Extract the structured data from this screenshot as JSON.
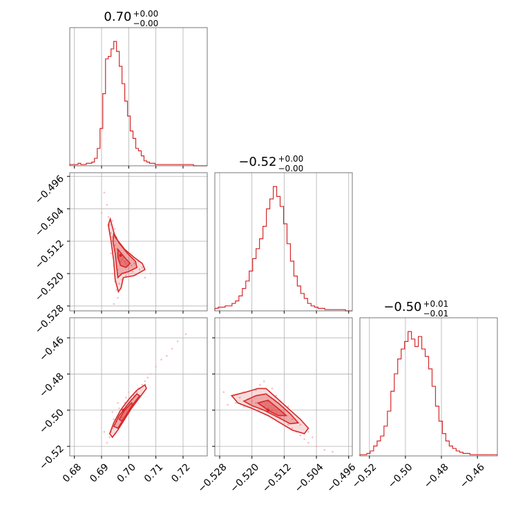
{
  "chart_data": {
    "type": "corner",
    "color": "#d62728",
    "parameters": [
      {
        "title_value": "0.70",
        "title_plus": "+0.00",
        "title_minus": "−0.00",
        "range": [
          0.6783,
          0.7289
        ],
        "ticks": [
          0.68,
          0.69,
          0.7,
          0.71,
          0.72
        ],
        "tick_labels": [
          "0.68",
          "0.69",
          "0.70",
          "0.71",
          "0.72"
        ],
        "hist": [
          1,
          1,
          1,
          2,
          1,
          1,
          2,
          2,
          3,
          6,
          14,
          30,
          58,
          86,
          88,
          94,
          100,
          92,
          80,
          66,
          52,
          40,
          28,
          22,
          14,
          12,
          8,
          4,
          3,
          2,
          2,
          1,
          1,
          1,
          1,
          1,
          1,
          1,
          1,
          1,
          1,
          1,
          1,
          1,
          1,
          0,
          0,
          0,
          0,
          0
        ]
      },
      {
        "title_value": "−0.52",
        "title_plus": "+0.00",
        "title_minus": "−0.00",
        "range": [
          -0.5292,
          -0.4951
        ],
        "ticks": [
          -0.528,
          -0.52,
          -0.512,
          -0.504,
          -0.496
        ],
        "tick_labels": [
          "−0.528",
          "−0.520",
          "−0.512",
          "−0.504",
          "−0.496"
        ],
        "hist": [
          2,
          3,
          3,
          4,
          4,
          6,
          8,
          12,
          18,
          24,
          32,
          42,
          50,
          58,
          68,
          82,
          90,
          100,
          92,
          84,
          70,
          54,
          40,
          28,
          20,
          14,
          10,
          6,
          4,
          3,
          2,
          2,
          1,
          1,
          1,
          1,
          1,
          1,
          0,
          0
        ]
      },
      {
        "title_value": "−0.50",
        "title_plus": "+0.01",
        "title_minus": "−0.01",
        "range": [
          -0.5253,
          -0.4489
        ],
        "ticks": [
          -0.52,
          -0.5,
          -0.48,
          -0.46
        ],
        "tick_labels": [
          "−0.52",
          "−0.50",
          "−0.48",
          "−0.46"
        ],
        "hist": [
          1,
          1,
          2,
          4,
          8,
          12,
          16,
          24,
          36,
          52,
          66,
          78,
          86,
          92,
          100,
          94,
          88,
          96,
          86,
          80,
          70,
          56,
          40,
          28,
          18,
          12,
          8,
          6,
          4,
          3,
          2,
          2,
          1,
          1,
          1,
          1,
          1,
          1,
          1,
          1
        ]
      }
    ],
    "pairs": [
      {
        "x_param": 0,
        "y_param": 1,
        "center": [
          0.697,
          -0.5155
        ],
        "points": [
          [
            0.6925,
            -0.506
          ],
          [
            0.693,
            -0.508
          ],
          [
            0.6935,
            -0.51
          ],
          [
            0.694,
            -0.511
          ],
          [
            0.6945,
            -0.512
          ],
          [
            0.695,
            -0.513
          ],
          [
            0.6955,
            -0.514
          ],
          [
            0.696,
            -0.515
          ],
          [
            0.6965,
            -0.516
          ],
          [
            0.697,
            -0.517
          ],
          [
            0.6975,
            -0.5165
          ],
          [
            0.698,
            -0.516
          ],
          [
            0.6985,
            -0.517
          ],
          [
            0.699,
            -0.5175
          ],
          [
            0.6995,
            -0.518
          ],
          [
            0.7,
            -0.517
          ],
          [
            0.701,
            -0.518
          ],
          [
            0.702,
            -0.5175
          ],
          [
            0.703,
            -0.5185
          ],
          [
            0.704,
            -0.519
          ],
          [
            0.705,
            -0.5185
          ],
          [
            0.694,
            -0.52
          ],
          [
            0.695,
            -0.522
          ],
          [
            0.6955,
            -0.524
          ],
          [
            0.696,
            -0.526
          ],
          [
            0.6945,
            -0.5275
          ],
          [
            0.69,
            -0.505
          ],
          [
            0.696,
            -0.519
          ],
          [
            0.698,
            -0.52
          ],
          [
            0.7,
            -0.52
          ],
          [
            0.706,
            -0.521
          ],
          [
            0.708,
            -0.52
          ],
          [
            0.692,
            -0.503
          ],
          [
            0.691,
            -0.5
          ],
          [
            0.6975,
            -0.5215
          ],
          [
            0.6965,
            -0.5225
          ],
          [
            0.699,
            -0.5205
          ],
          [
            0.7015,
            -0.5195
          ],
          [
            0.7035,
            -0.517
          ],
          [
            0.6955,
            -0.511
          ],
          [
            0.6948,
            -0.509
          ],
          [
            0.694,
            -0.507
          ],
          [
            0.6935,
            -0.515
          ],
          [
            0.6945,
            -0.518
          ],
          [
            0.71,
            -0.52
          ]
        ],
        "contours": [
          [
            [
              0.6932,
              -0.5065
            ],
            [
              0.695,
              -0.511
            ],
            [
              0.6985,
              -0.514
            ],
            [
              0.702,
              -0.516
            ],
            [
              0.705,
              -0.5175
            ],
            [
              0.706,
              -0.519
            ],
            [
              0.702,
              -0.5205
            ],
            [
              0.698,
              -0.521
            ],
            [
              0.6972,
              -0.5235
            ],
            [
              0.6962,
              -0.5245
            ],
            [
              0.695,
              -0.5215
            ],
            [
              0.6945,
              -0.517
            ],
            [
              0.6935,
              -0.512
            ],
            [
              0.6925,
              -0.508
            ]
          ],
          [
            [
              0.6945,
              -0.51
            ],
            [
              0.6965,
              -0.5125
            ],
            [
              0.6995,
              -0.515
            ],
            [
              0.7025,
              -0.517
            ],
            [
              0.703,
              -0.5185
            ],
            [
              0.7,
              -0.5195
            ],
            [
              0.6975,
              -0.52
            ],
            [
              0.696,
              -0.521
            ],
            [
              0.6955,
              -0.518
            ],
            [
              0.695,
              -0.515
            ],
            [
              0.6942,
              -0.512
            ]
          ],
          [
            [
              0.696,
              -0.514
            ],
            [
              0.6985,
              -0.516
            ],
            [
              0.7005,
              -0.5175
            ],
            [
              0.699,
              -0.5185
            ],
            [
              0.697,
              -0.518
            ],
            [
              0.696,
              -0.516
            ]
          ]
        ]
      },
      {
        "x_param": 0,
        "y_param": 2,
        "center": [
          0.698,
          -0.5
        ],
        "points": [
          [
            0.693,
            -0.515
          ],
          [
            0.6935,
            -0.512
          ],
          [
            0.694,
            -0.51
          ],
          [
            0.695,
            -0.508
          ],
          [
            0.6955,
            -0.506
          ],
          [
            0.696,
            -0.504
          ],
          [
            0.697,
            -0.502
          ],
          [
            0.698,
            -0.5
          ],
          [
            0.699,
            -0.498
          ],
          [
            0.7,
            -0.496
          ],
          [
            0.701,
            -0.494
          ],
          [
            0.702,
            -0.492
          ],
          [
            0.703,
            -0.49
          ],
          [
            0.704,
            -0.488
          ],
          [
            0.705,
            -0.486
          ],
          [
            0.706,
            -0.484
          ],
          [
            0.707,
            -0.482
          ],
          [
            0.708,
            -0.48
          ],
          [
            0.71,
            -0.476
          ],
          [
            0.712,
            -0.472
          ],
          [
            0.714,
            -0.47
          ],
          [
            0.716,
            -0.466
          ],
          [
            0.718,
            -0.462
          ],
          [
            0.721,
            -0.458
          ],
          [
            0.6945,
            -0.505
          ],
          [
            0.6965,
            -0.499
          ],
          [
            0.6975,
            -0.504
          ],
          [
            0.6985,
            -0.496
          ],
          [
            0.6995,
            -0.502
          ],
          [
            0.7005,
            -0.499
          ],
          [
            0.692,
            -0.518
          ],
          [
            0.691,
            -0.512
          ],
          [
            0.7015,
            -0.496
          ],
          [
            0.7025,
            -0.495
          ],
          [
            0.695,
            -0.513
          ],
          [
            0.696,
            -0.496
          ],
          [
            0.694,
            -0.501
          ],
          [
            0.7,
            -0.49
          ],
          [
            0.7035,
            -0.488
          ],
          [
            0.699,
            -0.493
          ]
        ],
        "contours": [
          [
            [
              0.693,
              -0.513
            ],
            [
              0.6945,
              -0.507
            ],
            [
              0.697,
              -0.5
            ],
            [
              0.7,
              -0.494
            ],
            [
              0.703,
              -0.489
            ],
            [
              0.706,
              -0.486
            ],
            [
              0.7065,
              -0.488
            ],
            [
              0.704,
              -0.493
            ],
            [
              0.701,
              -0.499
            ],
            [
              0.6985,
              -0.505
            ],
            [
              0.696,
              -0.511
            ],
            [
              0.694,
              -0.515
            ]
          ],
          [
            [
              0.6945,
              -0.509
            ],
            [
              0.6965,
              -0.503
            ],
            [
              0.6995,
              -0.497
            ],
            [
              0.703,
              -0.491
            ],
            [
              0.704,
              -0.492
            ],
            [
              0.701,
              -0.498
            ],
            [
              0.6985,
              -0.504
            ],
            [
              0.696,
              -0.51
            ]
          ],
          [
            [
              0.6965,
              -0.505
            ],
            [
              0.6985,
              -0.5
            ],
            [
              0.701,
              -0.496
            ],
            [
              0.7015,
              -0.4975
            ],
            [
              0.6995,
              -0.502
            ],
            [
              0.6975,
              -0.506
            ]
          ]
        ]
      },
      {
        "x_param": 1,
        "y_param": 2,
        "center": [
          -0.516,
          -0.5
        ],
        "points": [
          [
            -0.527,
            -0.49
          ],
          [
            -0.525,
            -0.492
          ],
          [
            -0.523,
            -0.493
          ],
          [
            -0.521,
            -0.494
          ],
          [
            -0.52,
            -0.495
          ],
          [
            -0.519,
            -0.496
          ],
          [
            -0.518,
            -0.497
          ],
          [
            -0.517,
            -0.498
          ],
          [
            -0.516,
            -0.499
          ],
          [
            -0.515,
            -0.5
          ],
          [
            -0.514,
            -0.502
          ],
          [
            -0.513,
            -0.504
          ],
          [
            -0.512,
            -0.506
          ],
          [
            -0.511,
            -0.508
          ],
          [
            -0.51,
            -0.51
          ],
          [
            -0.509,
            -0.512
          ],
          [
            -0.508,
            -0.514
          ],
          [
            -0.507,
            -0.516
          ],
          [
            -0.506,
            -0.518
          ],
          [
            -0.504,
            -0.52
          ],
          [
            -0.502,
            -0.522
          ],
          [
            -0.5,
            -0.523
          ],
          [
            -0.519,
            -0.489
          ],
          [
            -0.518,
            -0.486
          ],
          [
            -0.517,
            -0.484
          ],
          [
            -0.515,
            -0.488
          ],
          [
            -0.513,
            -0.495
          ],
          [
            -0.522,
            -0.498
          ],
          [
            -0.52,
            -0.5
          ],
          [
            -0.512,
            -0.501
          ],
          [
            -0.526,
            -0.497
          ],
          [
            -0.524,
            -0.496
          ],
          [
            -0.51,
            -0.505
          ],
          [
            -0.514,
            -0.492
          ],
          [
            -0.508,
            -0.508
          ],
          [
            -0.506,
            -0.512
          ],
          [
            -0.505,
            -0.515
          ],
          [
            -0.511,
            -0.498
          ],
          [
            -0.516,
            -0.495
          ],
          [
            -0.522,
            -0.49
          ]
        ],
        "contours": [
          [
            [
              -0.525,
              -0.492
            ],
            [
              -0.5215,
              -0.49
            ],
            [
              -0.5185,
              -0.488
            ],
            [
              -0.5165,
              -0.488
            ],
            [
              -0.514,
              -0.493
            ],
            [
              -0.511,
              -0.499
            ],
            [
              -0.508,
              -0.505
            ],
            [
              -0.506,
              -0.51
            ],
            [
              -0.507,
              -0.513
            ],
            [
              -0.51,
              -0.511
            ],
            [
              -0.513,
              -0.507
            ],
            [
              -0.516,
              -0.503
            ],
            [
              -0.52,
              -0.499
            ],
            [
              -0.5235,
              -0.496
            ]
          ],
          [
            [
              -0.522,
              -0.495
            ],
            [
              -0.519,
              -0.492
            ],
            [
              -0.5165,
              -0.491
            ],
            [
              -0.5135,
              -0.496
            ],
            [
              -0.5105,
              -0.502
            ],
            [
              -0.5085,
              -0.507
            ],
            [
              -0.5105,
              -0.5075
            ],
            [
              -0.5135,
              -0.504
            ],
            [
              -0.517,
              -0.5
            ],
            [
              -0.52,
              -0.4975
            ]
          ],
          [
            [
              -0.5185,
              -0.496
            ],
            [
              -0.516,
              -0.4945
            ],
            [
              -0.5135,
              -0.499
            ],
            [
              -0.5115,
              -0.503
            ],
            [
              -0.5135,
              -0.503
            ],
            [
              -0.516,
              -0.5
            ]
          ]
        ]
      }
    ],
    "grid": true
  }
}
